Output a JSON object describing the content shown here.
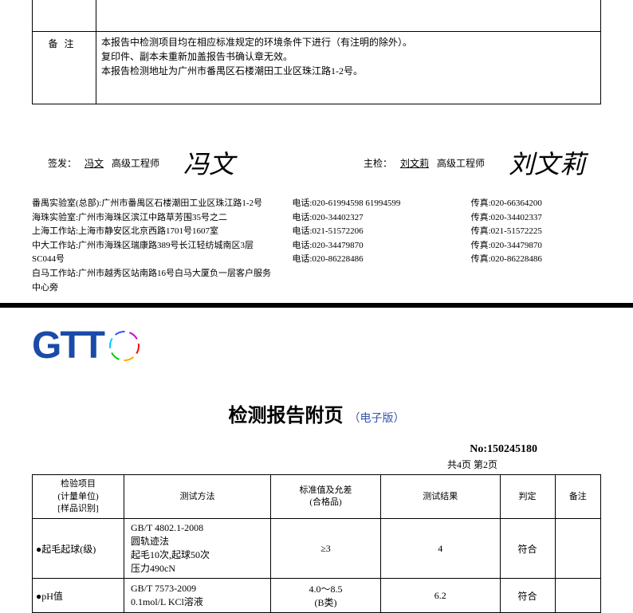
{
  "page1": {
    "remark_label": "备注",
    "remark_line1": "本报告中检测项目均在相应标准规定的环境条件下进行（有注明的除外）。",
    "remark_line2": "复印件、副本未重新加盖报告书确认章无效。",
    "remark_line3": "本报告检测地址为广州市番禺区石楼潮田工业区珠江路1-2号。",
    "sign_issue_label": "签发：",
    "sign_issue_name": "冯文",
    "sign_issue_title": " 高级工程师",
    "sign_issue_script": "冯文",
    "sign_check_label": "主检：",
    "sign_check_name": "刘文莉",
    "sign_check_title": " 高级工程师",
    "sign_check_script": "刘文莉",
    "addresses": {
      "l1": "番禺实验室(总部):广州市番禺区石楼潮田工业区珠江路1-2号",
      "l2": "海珠实验室:广州市海珠区滨江中路草芳围35号之二",
      "l3": "上海工作站:上海市静安区北京西路1701号1607室",
      "l4": "中大工作站:广州市海珠区瑞康路389号长江轻纺城南区3层SC044号",
      "l5": "白马工作站:广州市越秀区站南路16号白马大厦负一层客户服务中心旁"
    },
    "phones": {
      "l1": "电话:020-61994598 61994599",
      "l2": "电话:020-34402327",
      "l3": "电话:021-51572206",
      "l4": "电话:020-34479870",
      "l5": "电话:020-86228486"
    },
    "faxes": {
      "l1": "传真:020-66364200",
      "l2": "传真:020-34402337",
      "l3": "传真:021-51572225",
      "l4": "传真:020-34479870",
      "l5": "传真:020-86228486"
    }
  },
  "page2": {
    "logo_text": "GTT",
    "title": "检测报告附页",
    "subtitle": "（电子版）",
    "report_no_label": "No:",
    "report_no_value": "150245180",
    "page_indicator": "共4页  第2页",
    "table": {
      "headers": {
        "item": "检验项目\n(计量单位)\n[样品识别]",
        "method": "测试方法",
        "standard": "标准值及允差\n(合格品)",
        "result": "测试结果",
        "judge": "判定",
        "remark": "备注"
      },
      "rows": [
        {
          "item": "●起毛起球(级)",
          "method": "GB/T 4802.1-2008\n圆轨迹法\n起毛10次,起球50次\n压力490cN",
          "standard": "≥3",
          "result": "4",
          "judge": "符合",
          "remark": ""
        },
        {
          "item": "●pH值",
          "method": "GB/T 7573-2009\n0.1mol/L KCl溶液",
          "standard": "4.0～8.5\n(B类)",
          "result": "6.2",
          "judge": "符合",
          "remark": ""
        }
      ]
    }
  }
}
